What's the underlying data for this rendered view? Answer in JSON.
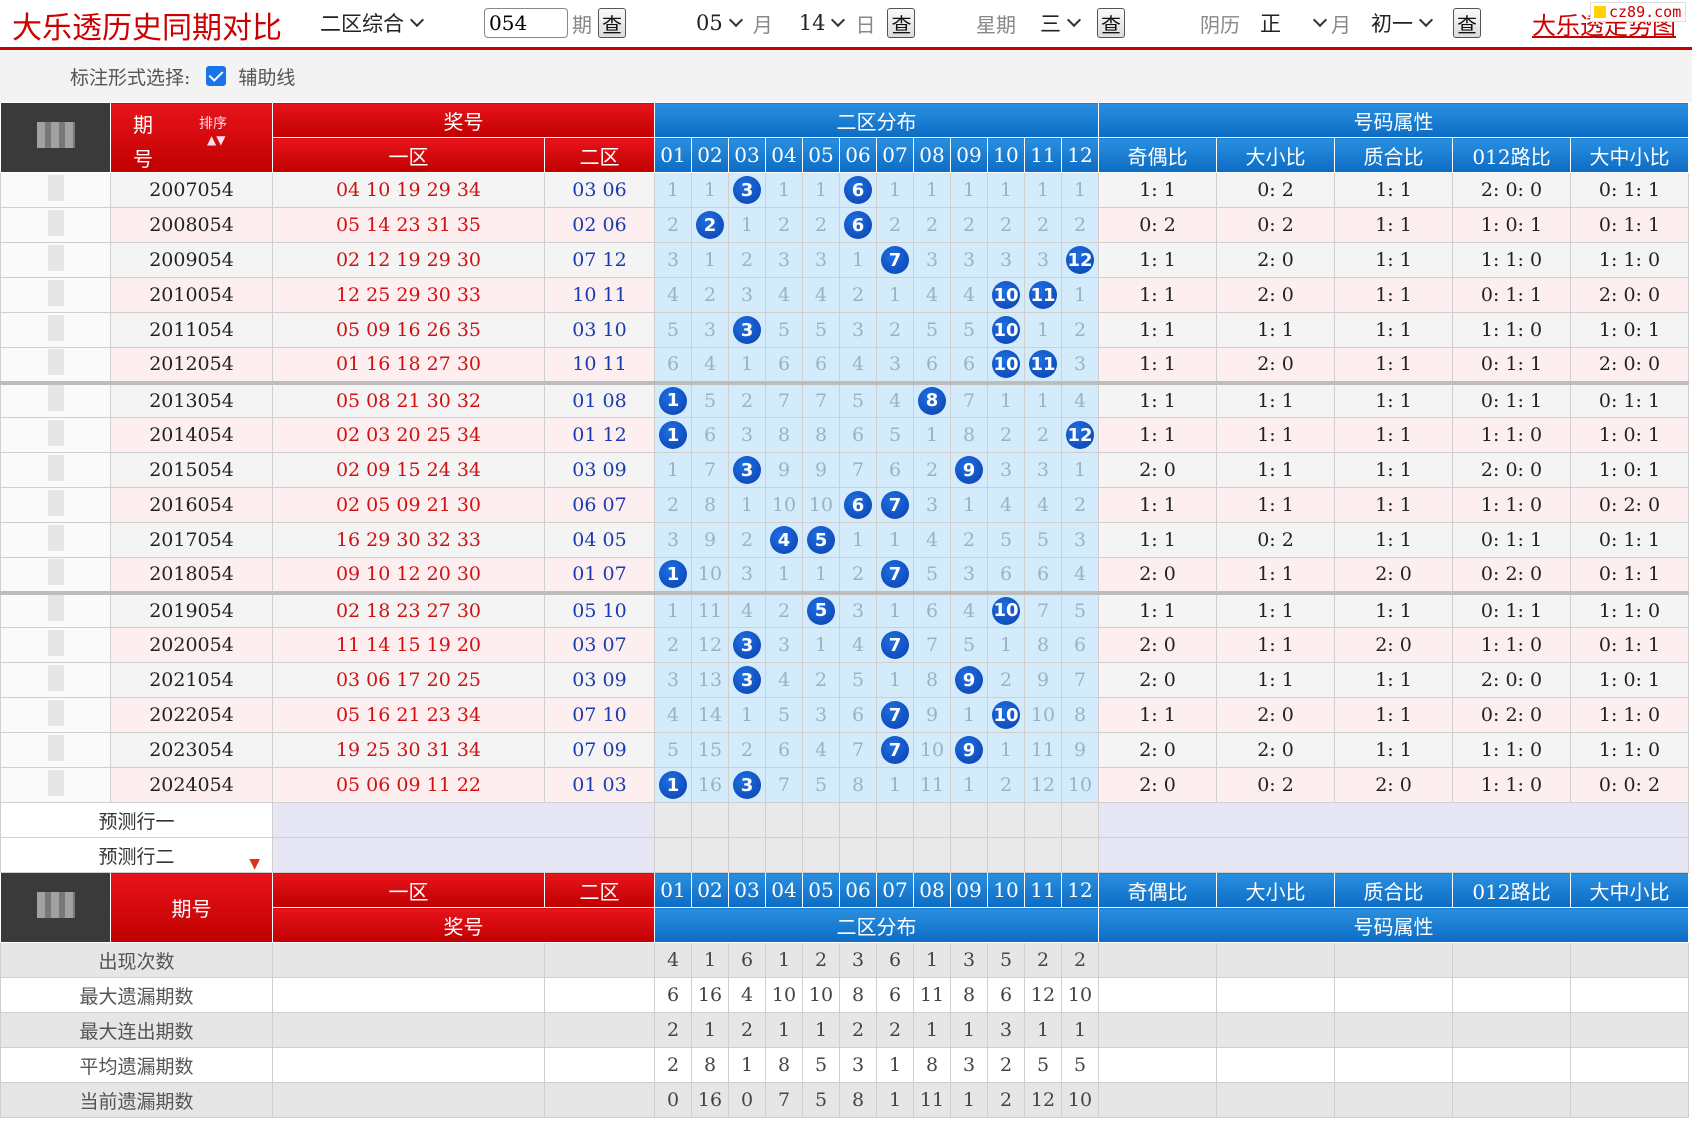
{
  "header": {
    "title": "大乐透历史同期对比",
    "mode_select": "二区综合",
    "period_value": "054",
    "period_unit": "期",
    "month_value": "05",
    "month_unit": "月",
    "day_value": "14",
    "day_unit": "日",
    "weekday_label": "星期",
    "weekday_value": "三",
    "lunar_label": "阴历",
    "lunar_month_value": "正",
    "lunar_month_unit": "月",
    "lunar_day_value": "初一",
    "query_label": "查",
    "site_link": "大乐透走势图",
    "logo": "cz89.com"
  },
  "options": {
    "label": "标注形式选择:",
    "assist_line_label": "辅助线",
    "assist_line_checked": true
  },
  "table_header": {
    "period_label_1": "期",
    "period_label_2": "号",
    "sort_label": "排序",
    "prize_label": "奖号",
    "zone1_label": "一区",
    "zone2_label": "二区",
    "distribution_label": "二区分布",
    "attributes_label": "号码属性",
    "numbers": [
      "01",
      "02",
      "03",
      "04",
      "05",
      "06",
      "07",
      "08",
      "09",
      "10",
      "11",
      "12"
    ],
    "attrs": [
      "奇偶比",
      "大小比",
      "质合比",
      "012路比",
      "大中小比"
    ]
  },
  "rows": [
    {
      "period": "2007054",
      "z1": "04 10 19 29 34",
      "z2": "03 06",
      "dist": [
        "1",
        "1",
        "3",
        "1",
        "1",
        "6",
        "1",
        "1",
        "1",
        "1",
        "1",
        "1"
      ],
      "hits": [
        3,
        6
      ],
      "attrs": [
        "1: 1",
        "0: 2",
        "1: 1",
        "2: 0: 0",
        "0: 1: 1"
      ]
    },
    {
      "period": "2008054",
      "z1": "05 14 23 31 35",
      "z2": "02 06",
      "dist": [
        "2",
        "2",
        "1",
        "2",
        "2",
        "6",
        "2",
        "2",
        "2",
        "2",
        "2",
        "2"
      ],
      "hits": [
        2,
        6
      ],
      "attrs": [
        "0: 2",
        "0: 2",
        "1: 1",
        "1: 0: 1",
        "0: 1: 1"
      ]
    },
    {
      "period": "2009054",
      "z1": "02 12 19 29 30",
      "z2": "07 12",
      "dist": [
        "3",
        "1",
        "2",
        "3",
        "3",
        "1",
        "7",
        "3",
        "3",
        "3",
        "3",
        "12"
      ],
      "hits": [
        7,
        12
      ],
      "attrs": [
        "1: 1",
        "2: 0",
        "1: 1",
        "1: 1: 0",
        "1: 1: 0"
      ]
    },
    {
      "period": "2010054",
      "z1": "12 25 29 30 33",
      "z2": "10 11",
      "dist": [
        "4",
        "2",
        "3",
        "4",
        "4",
        "2",
        "1",
        "4",
        "4",
        "10",
        "11",
        "1"
      ],
      "hits": [
        10,
        11
      ],
      "attrs": [
        "1: 1",
        "2: 0",
        "1: 1",
        "0: 1: 1",
        "2: 0: 0"
      ]
    },
    {
      "period": "2011054",
      "z1": "05 09 16 26 35",
      "z2": "03 10",
      "dist": [
        "5",
        "3",
        "3",
        "5",
        "5",
        "3",
        "2",
        "5",
        "5",
        "10",
        "1",
        "2"
      ],
      "hits": [
        3,
        10
      ],
      "attrs": [
        "1: 1",
        "1: 1",
        "1: 1",
        "1: 1: 0",
        "1: 0: 1"
      ]
    },
    {
      "period": "2012054",
      "z1": "01 16 18 27 30",
      "z2": "10 11",
      "dist": [
        "6",
        "4",
        "1",
        "6",
        "6",
        "4",
        "3",
        "6",
        "6",
        "10",
        "11",
        "3"
      ],
      "hits": [
        10,
        11
      ],
      "attrs": [
        "1: 1",
        "2: 0",
        "1: 1",
        "0: 1: 1",
        "2: 0: 0"
      ]
    },
    {
      "period": "2013054",
      "z1": "05 08 21 30 32",
      "z2": "01 08",
      "dist": [
        "1",
        "5",
        "2",
        "7",
        "7",
        "5",
        "4",
        "8",
        "7",
        "1",
        "1",
        "4"
      ],
      "hits": [
        1,
        8
      ],
      "attrs": [
        "1: 1",
        "1: 1",
        "1: 1",
        "0: 1: 1",
        "0: 1: 1"
      ]
    },
    {
      "period": "2014054",
      "z1": "02 03 20 25 34",
      "z2": "01 12",
      "dist": [
        "1",
        "6",
        "3",
        "8",
        "8",
        "6",
        "5",
        "1",
        "8",
        "2",
        "2",
        "12"
      ],
      "hits": [
        1,
        12
      ],
      "attrs": [
        "1: 1",
        "1: 1",
        "1: 1",
        "1: 1: 0",
        "1: 0: 1"
      ]
    },
    {
      "period": "2015054",
      "z1": "02 09 15 24 34",
      "z2": "03 09",
      "dist": [
        "1",
        "7",
        "3",
        "9",
        "9",
        "7",
        "6",
        "2",
        "9",
        "3",
        "3",
        "1"
      ],
      "hits": [
        3,
        9
      ],
      "attrs": [
        "2: 0",
        "1: 1",
        "1: 1",
        "2: 0: 0",
        "1: 0: 1"
      ]
    },
    {
      "period": "2016054",
      "z1": "02 05 09 21 30",
      "z2": "06 07",
      "dist": [
        "2",
        "8",
        "1",
        "10",
        "10",
        "6",
        "7",
        "3",
        "1",
        "4",
        "4",
        "2"
      ],
      "hits": [
        6,
        7
      ],
      "attrs": [
        "1: 1",
        "1: 1",
        "1: 1",
        "1: 1: 0",
        "0: 2: 0"
      ]
    },
    {
      "period": "2017054",
      "z1": "16 29 30 32 33",
      "z2": "04 05",
      "dist": [
        "3",
        "9",
        "2",
        "4",
        "5",
        "1",
        "1",
        "4",
        "2",
        "5",
        "5",
        "3"
      ],
      "hits": [
        4,
        5
      ],
      "attrs": [
        "1: 1",
        "0: 2",
        "1: 1",
        "0: 1: 1",
        "0: 1: 1"
      ]
    },
    {
      "period": "2018054",
      "z1": "09 10 12 20 30",
      "z2": "01 07",
      "dist": [
        "1",
        "10",
        "3",
        "1",
        "1",
        "2",
        "7",
        "5",
        "3",
        "6",
        "6",
        "4"
      ],
      "hits": [
        1,
        7
      ],
      "attrs": [
        "2: 0",
        "1: 1",
        "2: 0",
        "0: 2: 0",
        "0: 1: 1"
      ]
    },
    {
      "period": "2019054",
      "z1": "02 18 23 27 30",
      "z2": "05 10",
      "dist": [
        "1",
        "11",
        "4",
        "2",
        "5",
        "3",
        "1",
        "6",
        "4",
        "10",
        "7",
        "5"
      ],
      "hits": [
        5,
        10
      ],
      "attrs": [
        "1: 1",
        "1: 1",
        "1: 1",
        "0: 1: 1",
        "1: 1: 0"
      ]
    },
    {
      "period": "2020054",
      "z1": "11 14 15 19 20",
      "z2": "03 07",
      "dist": [
        "2",
        "12",
        "3",
        "3",
        "1",
        "4",
        "7",
        "7",
        "5",
        "1",
        "8",
        "6"
      ],
      "hits": [
        3,
        7
      ],
      "attrs": [
        "2: 0",
        "1: 1",
        "2: 0",
        "1: 1: 0",
        "0: 1: 1"
      ]
    },
    {
      "period": "2021054",
      "z1": "03 06 17 20 25",
      "z2": "03 09",
      "dist": [
        "3",
        "13",
        "3",
        "4",
        "2",
        "5",
        "1",
        "8",
        "9",
        "2",
        "9",
        "7"
      ],
      "hits": [
        3,
        9
      ],
      "attrs": [
        "2: 0",
        "1: 1",
        "1: 1",
        "2: 0: 0",
        "1: 0: 1"
      ]
    },
    {
      "period": "2022054",
      "z1": "05 16 21 23 34",
      "z2": "07 10",
      "dist": [
        "4",
        "14",
        "1",
        "5",
        "3",
        "6",
        "7",
        "9",
        "1",
        "10",
        "10",
        "8"
      ],
      "hits": [
        7,
        10
      ],
      "attrs": [
        "1: 1",
        "2: 0",
        "1: 1",
        "0: 2: 0",
        "1: 1: 0"
      ]
    },
    {
      "period": "2023054",
      "z1": "19 25 30 31 34",
      "z2": "07 09",
      "dist": [
        "5",
        "15",
        "2",
        "6",
        "4",
        "7",
        "7",
        "10",
        "9",
        "1",
        "11",
        "9"
      ],
      "hits": [
        7,
        9
      ],
      "attrs": [
        "2: 0",
        "2: 0",
        "1: 1",
        "1: 1: 0",
        "1: 1: 0"
      ]
    },
    {
      "period": "2024054",
      "z1": "05 06 09 11 22",
      "z2": "01 03",
      "dist": [
        "1",
        "16",
        "3",
        "7",
        "5",
        "8",
        "1",
        "11",
        "1",
        "2",
        "12",
        "10"
      ],
      "hits": [
        1,
        3
      ],
      "attrs": [
        "2: 0",
        "0: 2",
        "2: 0",
        "1: 1: 0",
        "0: 0: 2"
      ]
    }
  ],
  "predictions": [
    "预测行一",
    "预测行二"
  ],
  "footer_header": {
    "period_label": "期号",
    "zone1_label": "一区",
    "zone2_label": "二区",
    "prize_label": "奖号",
    "distribution_label": "二区分布",
    "attributes_label": "号码属性"
  },
  "stats": [
    {
      "label": "出现次数",
      "values": [
        "4",
        "1",
        "6",
        "1",
        "2",
        "3",
        "6",
        "1",
        "3",
        "5",
        "2",
        "2"
      ]
    },
    {
      "label": "最大遗漏期数",
      "values": [
        "6",
        "16",
        "4",
        "10",
        "10",
        "8",
        "6",
        "11",
        "8",
        "6",
        "12",
        "10"
      ]
    },
    {
      "label": "最大连出期数",
      "values": [
        "2",
        "1",
        "2",
        "1",
        "1",
        "2",
        "2",
        "1",
        "1",
        "3",
        "1",
        "1"
      ]
    },
    {
      "label": "平均遗漏期数",
      "values": [
        "2",
        "8",
        "1",
        "8",
        "5",
        "3",
        "1",
        "8",
        "3",
        "2",
        "5",
        "5"
      ]
    },
    {
      "label": "当前遗漏期数",
      "values": [
        "0",
        "16",
        "0",
        "7",
        "5",
        "8",
        "1",
        "11",
        "1",
        "2",
        "12",
        "10"
      ]
    }
  ],
  "colors": {
    "brand_red": "#cc0000",
    "header_blue": "#0c6cc4",
    "ball_blue": "#0a3fae",
    "dist_bg": "#d3ebfb"
  }
}
